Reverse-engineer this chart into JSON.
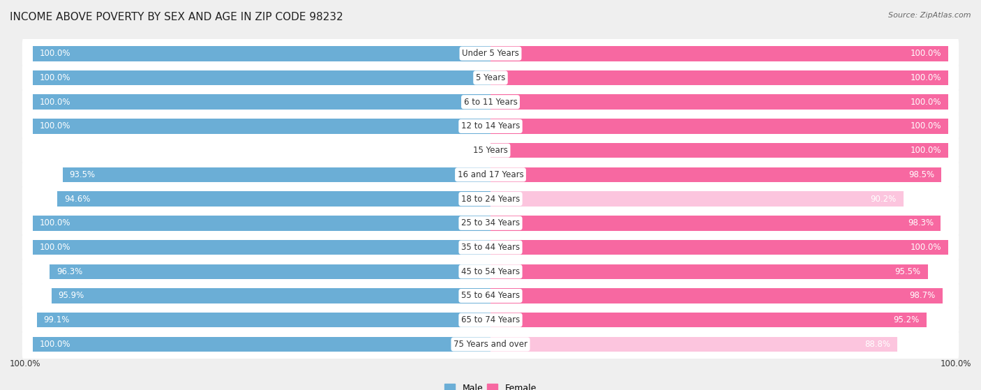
{
  "title": "INCOME ABOVE POVERTY BY SEX AND AGE IN ZIP CODE 98232",
  "source": "Source: ZipAtlas.com",
  "categories": [
    "Under 5 Years",
    "5 Years",
    "6 to 11 Years",
    "12 to 14 Years",
    "15 Years",
    "16 and 17 Years",
    "18 to 24 Years",
    "25 to 34 Years",
    "35 to 44 Years",
    "45 to 54 Years",
    "55 to 64 Years",
    "65 to 74 Years",
    "75 Years and over"
  ],
  "male_values": [
    100.0,
    100.0,
    100.0,
    100.0,
    0.0,
    93.5,
    94.6,
    100.0,
    100.0,
    96.3,
    95.9,
    99.1,
    100.0
  ],
  "female_values": [
    100.0,
    100.0,
    100.0,
    100.0,
    100.0,
    98.5,
    90.2,
    98.3,
    100.0,
    95.5,
    98.7,
    95.2,
    88.8
  ],
  "male_color": "#6baed6",
  "male_color_light": "#c6dbef",
  "female_color": "#f768a1",
  "female_color_light": "#fcc5de",
  "male_label": "Male",
  "female_label": "Female",
  "background_color": "#efefef",
  "row_color": "#ffffff",
  "title_fontsize": 11,
  "label_fontsize": 8.5,
  "value_fontsize": 8.5
}
